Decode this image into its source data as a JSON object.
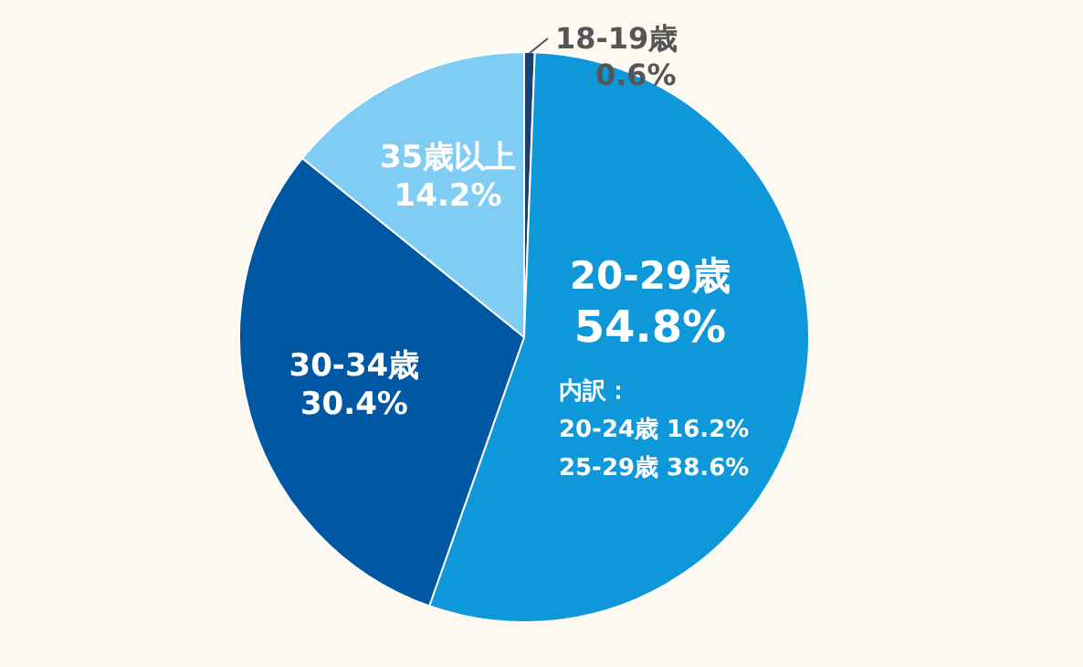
{
  "chart_data": {
    "type": "pie",
    "categories": [
      "18-19歳",
      "20-29歳",
      "30-34歳",
      "35歳以上"
    ],
    "values": [
      0.6,
      54.8,
      30.4,
      14.2
    ],
    "value_labels": [
      "0.6%",
      "54.8%",
      "30.4%",
      "14.2%"
    ],
    "colors": [
      "#1b3f73",
      "#0e98da",
      "#0058a4",
      "#7fcdf4"
    ],
    "annotations": [
      "内訳：",
      "20-24歳 16.2%",
      "25-29歳 38.6%"
    ],
    "legend": false
  }
}
